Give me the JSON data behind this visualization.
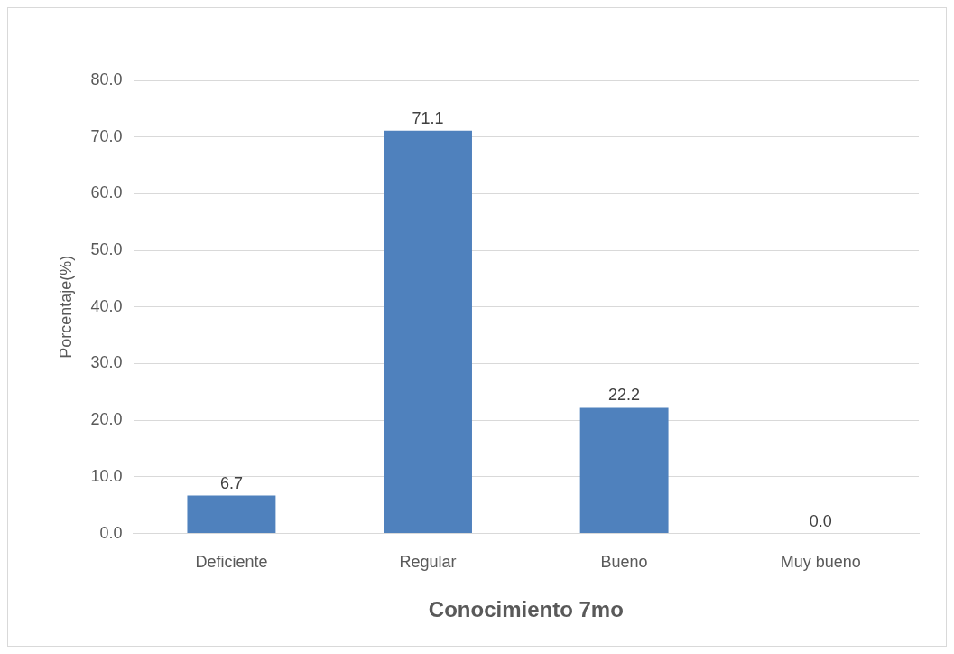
{
  "chart_data": {
    "type": "bar",
    "xlabel": "Conocimiento 7mo",
    "ylabel": "Porcentaje(%)",
    "categories": [
      "Deficiente",
      "Regular",
      "Bueno",
      "Muy bueno"
    ],
    "values": [
      6.7,
      71.1,
      22.2,
      0.0
    ],
    "value_labels": [
      "6.7",
      "71.1",
      "22.2",
      "0.0"
    ],
    "color": "#4f81bd",
    "ylim": [
      0,
      80
    ],
    "yticks": [
      {
        "value": 0,
        "label": "0.0"
      },
      {
        "value": 10,
        "label": "10.0"
      },
      {
        "value": 20,
        "label": "20.0"
      },
      {
        "value": 30,
        "label": "30.0"
      },
      {
        "value": 40,
        "label": "40.0"
      },
      {
        "value": 50,
        "label": "50.0"
      },
      {
        "value": 60,
        "label": "60.0"
      },
      {
        "value": 70,
        "label": "70.0"
      },
      {
        "value": 80,
        "label": "80.0"
      }
    ],
    "grid": "y",
    "legend": false
  }
}
